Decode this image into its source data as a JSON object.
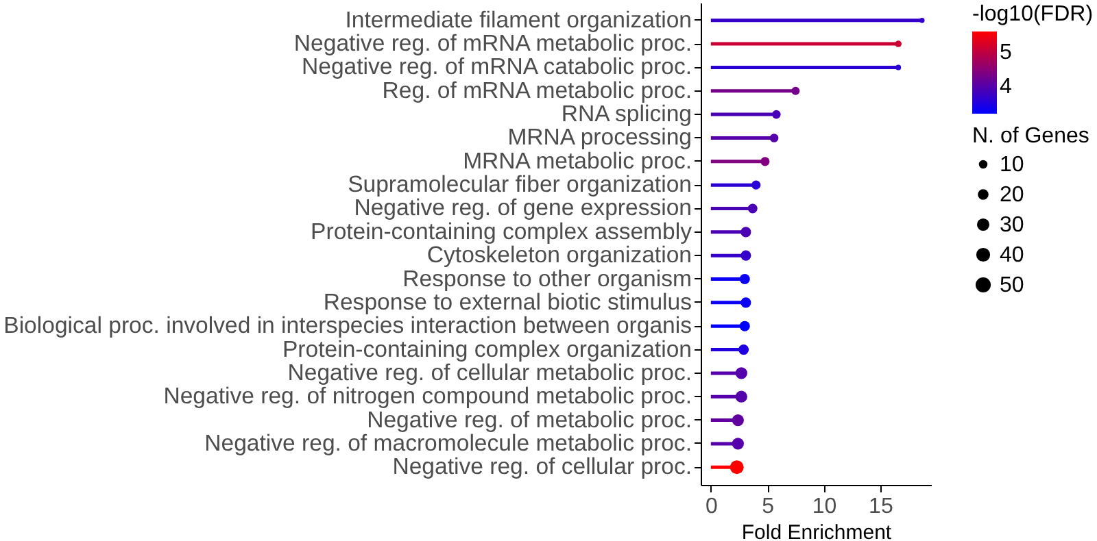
{
  "chart_data": {
    "type": "lollipop",
    "orientation": "horizontal",
    "xlabel": "Fold Enrichment",
    "legend_title": "N. of Genes",
    "clabel": "-log10(FDR)",
    "grid": false,
    "categories": [
      "Intermediate filament organization",
      "Negative reg. of mRNA metabolic proc.",
      "Negative reg. of mRNA catabolic proc.",
      "Reg. of mRNA metabolic proc.",
      "RNA splicing",
      "MRNA processing",
      "MRNA metabolic proc.",
      "Supramolecular fiber organization",
      "Negative reg. of gene expression",
      "Protein-containing complex assembly",
      "Cytoskeleton organization",
      "Response to other organism",
      "Response to external biotic stimulus",
      "Biological proc. involved in interspecies interaction between organis",
      "Protein-containing complex organization",
      "Negative reg. of cellular metabolic proc.",
      "Negative reg. of nitrogen compound metabolic proc.",
      "Negative reg. of metabolic proc.",
      "Negative reg. of macromolecule metabolic proc.",
      "Negative reg. of cellular proc."
    ],
    "values": [
      18.7,
      16.6,
      16.6,
      7.5,
      5.8,
      5.6,
      4.8,
      4.0,
      3.7,
      3.1,
      3.1,
      3.0,
      3.1,
      3.0,
      2.9,
      2.7,
      2.7,
      2.4,
      2.4,
      2.3
    ],
    "sizes": [
      5,
      10,
      6,
      18,
      20,
      20,
      22,
      22,
      25,
      30,
      30,
      30,
      30,
      30,
      30,
      40,
      40,
      40,
      40,
      55
    ],
    "size_legend": [
      10,
      20,
      30,
      40,
      50
    ],
    "cvalues": [
      3.7,
      5.1,
      3.6,
      4.3,
      3.9,
      4.0,
      4.4,
      3.6,
      3.9,
      3.9,
      3.7,
      3.3,
      3.3,
      3.2,
      3.5,
      4.0,
      4.0,
      4.1,
      4.0,
      5.6
    ],
    "clim": [
      3.2,
      5.6
    ],
    "cticks": [
      4,
      5
    ],
    "xlim": [
      -0.9,
      19.5
    ],
    "xticks": [
      0,
      5,
      10,
      15
    ]
  }
}
